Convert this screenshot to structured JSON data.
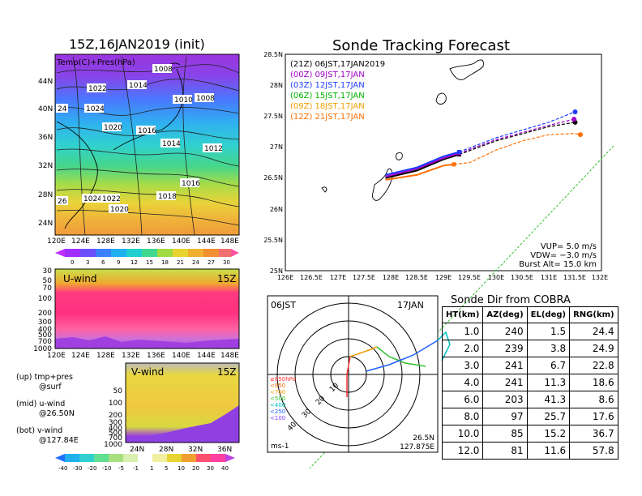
{
  "chart_data": [
    {
      "type": "contour-map",
      "title": "15Z,16JAN2019 (init)",
      "overlay_label": "Temp(C)+Pres(hPa)",
      "xticks": [
        "120E",
        "124E",
        "128E",
        "132E",
        "136E",
        "140E",
        "144E",
        "148E"
      ],
      "yticks": [
        "44N",
        "40N",
        "36N",
        "32N",
        "28N",
        "24N"
      ],
      "pressure_labels": [
        "1008",
        "1022",
        "1014",
        "1010",
        "1008",
        "1024",
        "1020",
        "1016",
        "1014",
        "1012",
        "1016",
        "1018",
        "1024",
        "1022",
        "1020",
        "24",
        "26"
      ],
      "colorbar": [
        "0",
        "3",
        "6",
        "9",
        "12",
        "15",
        "18",
        "21",
        "24",
        "27",
        "30"
      ]
    },
    {
      "type": "heatmap",
      "title": "U-wind",
      "time_label": "15Z",
      "yticks": [
        "30",
        "50",
        "70",
        "100",
        "200",
        "300",
        "400",
        "500",
        "700",
        "1000"
      ],
      "xticks": [
        "120E",
        "124E",
        "128E",
        "132E",
        "136E",
        "140E",
        "144E",
        "148E"
      ]
    },
    {
      "type": "heatmap",
      "title": "V-wind",
      "time_label": "15Z",
      "yticks": [
        "50",
        "100",
        "200",
        "300",
        "400",
        "500",
        "700",
        "1000"
      ],
      "xticks": [
        "24N",
        "28N",
        "32N",
        "36N"
      ],
      "colorbar": [
        "-40",
        "-30",
        "-20",
        "-10",
        "-5",
        "-1",
        "1",
        "5",
        "10",
        "20",
        "30",
        "40"
      ]
    },
    {
      "type": "line",
      "title": "Sonde Tracking Forecast",
      "xlim": [
        126,
        132
      ],
      "ylim": [
        25,
        28.5
      ],
      "xticks": [
        "126E",
        "126.5E",
        "127E",
        "127.5E",
        "128E",
        "128.5E",
        "129E",
        "129.5E",
        "130E",
        "130.5E",
        "131E",
        "131.5E",
        "132E"
      ],
      "yticks": [
        "28.5N",
        "28N",
        "27.5N",
        "27N",
        "26.5N",
        "26N",
        "25.5N",
        "25N"
      ],
      "legend": [
        {
          "label": "(21Z)  06JST,17JAN2019",
          "color": "#000000"
        },
        {
          "label": "(00Z)  09JST,17JAN",
          "color": "#a000c8"
        },
        {
          "label": "(03Z)  12JST,17JAN",
          "color": "#1e3cff"
        },
        {
          "label": "(06Z)  15JST,17JAN",
          "color": "#00b400"
        },
        {
          "label": "(09Z)  18JST,17JAN",
          "color": "#f0a000"
        },
        {
          "label": "(12Z)  21JST,17JAN",
          "color": "#ff6e00"
        }
      ],
      "series": [
        {
          "name": "(21Z)",
          "color": "#000000",
          "x": [
            127.9,
            128.5,
            129.0,
            129.3,
            130.0,
            131.0,
            131.5
          ],
          "y": [
            26.5,
            26.62,
            26.8,
            26.88,
            27.1,
            27.33,
            27.4
          ]
        },
        {
          "name": "(00Z)",
          "color": "#a000c8",
          "x": [
            127.9,
            128.5,
            129.0,
            129.3,
            130.0,
            131.0,
            131.48
          ],
          "y": [
            26.52,
            26.65,
            26.82,
            26.9,
            27.12,
            27.35,
            27.45
          ]
        },
        {
          "name": "(03Z)",
          "color": "#1e3cff",
          "x": [
            127.9,
            128.5,
            129.0,
            129.3,
            130.0,
            131.0,
            131.5
          ],
          "y": [
            26.55,
            26.67,
            26.85,
            26.92,
            27.15,
            27.4,
            27.57
          ]
        },
        {
          "name": "(12Z)",
          "color": "#ff6e00",
          "x": [
            127.9,
            128.5,
            129.0,
            129.2,
            129.5,
            130.0,
            130.5,
            131.0,
            131.5,
            131.6
          ],
          "y": [
            26.47,
            26.55,
            26.7,
            26.72,
            26.75,
            26.95,
            27.1,
            27.2,
            27.22,
            27.2
          ]
        }
      ],
      "annotations": [
        "VUP=  5.0  m/s",
        "VDW= −3.0  m/s",
        "Burst Alt=  15.0  km"
      ]
    },
    {
      "type": "polar",
      "left_label": "06JST",
      "right_label": "17JAN",
      "pressure_legend": [
        "≥850hPa",
        "<850",
        "<700",
        "<500",
        "<400",
        "<250",
        "<100"
      ],
      "ring_labels": [
        "10",
        "20",
        "30",
        "40"
      ],
      "unit": "ms-1",
      "location": [
        "26.5N",
        "127.875E"
      ]
    },
    {
      "type": "table",
      "title": "Sonde Dir from COBRA",
      "columns": [
        "HT(km)",
        "AZ(deg)",
        "EL(deg)",
        "RNG(km)"
      ],
      "rows": [
        [
          "1.0",
          "240",
          "1.5",
          "24.4"
        ],
        [
          "2.0",
          "239",
          "3.8",
          "24.9"
        ],
        [
          "3.0",
          "241",
          "6.7",
          "22.8"
        ],
        [
          "4.0",
          "241",
          "11.3",
          "18.6"
        ],
        [
          "6.0",
          "203",
          "41.3",
          "8.6"
        ],
        [
          "8.0",
          "97",
          "25.7",
          "17.6"
        ],
        [
          "10.0",
          "85",
          "15.2",
          "36.7"
        ],
        [
          "12.0",
          "81",
          "11.6",
          "57.8"
        ]
      ]
    }
  ],
  "left_notes": [
    "(up) tmp+pres",
    "@surf",
    "(mid) u-wind",
    "@26.50N",
    "(bot) v-wind",
    "@127.84E"
  ]
}
